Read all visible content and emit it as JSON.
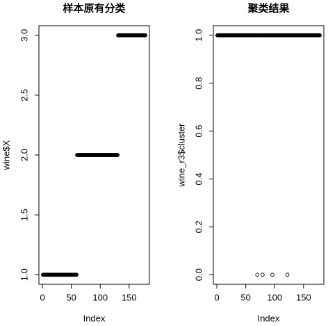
{
  "chart_data": [
    {
      "type": "scatter",
      "title": "样本原有分类",
      "x_label": "Index",
      "y_label": "wine$X",
      "marker_color": "#000000",
      "x": [
        1,
        2,
        3,
        4,
        5,
        6,
        7,
        8,
        9,
        10,
        11,
        12,
        13,
        14,
        15,
        16,
        17,
        18,
        19,
        20,
        21,
        22,
        23,
        24,
        25,
        26,
        27,
        28,
        29,
        30,
        31,
        32,
        33,
        34,
        35,
        36,
        37,
        38,
        39,
        40,
        41,
        42,
        43,
        44,
        45,
        46,
        47,
        48,
        49,
        50,
        51,
        52,
        53,
        54,
        55,
        56,
        57,
        58,
        59,
        60,
        61,
        62,
        63,
        64,
        65,
        66,
        67,
        68,
        69,
        70,
        71,
        72,
        73,
        74,
        75,
        76,
        77,
        78,
        79,
        80,
        81,
        82,
        83,
        84,
        85,
        86,
        87,
        88,
        89,
        90,
        91,
        92,
        93,
        94,
        95,
        96,
        97,
        98,
        99,
        100,
        101,
        102,
        103,
        104,
        105,
        106,
        107,
        108,
        109,
        110,
        111,
        112,
        113,
        114,
        115,
        116,
        117,
        118,
        119,
        120,
        121,
        122,
        123,
        124,
        125,
        126,
        127,
        128,
        129,
        130,
        131,
        132,
        133,
        134,
        135,
        136,
        137,
        138,
        139,
        140,
        141,
        142,
        143,
        144,
        145,
        146,
        147,
        148,
        149,
        150,
        151,
        152,
        153,
        154,
        155,
        156,
        157,
        158,
        159,
        160,
        161,
        162,
        163,
        164,
        165,
        166,
        167,
        168,
        169,
        170,
        171,
        172,
        173,
        174,
        175,
        176,
        177,
        178
      ],
      "values": [
        1,
        1,
        1,
        1,
        1,
        1,
        1,
        1,
        1,
        1,
        1,
        1,
        1,
        1,
        1,
        1,
        1,
        1,
        1,
        1,
        1,
        1,
        1,
        1,
        1,
        1,
        1,
        1,
        1,
        1,
        1,
        1,
        1,
        1,
        1,
        1,
        1,
        1,
        1,
        1,
        1,
        1,
        1,
        1,
        1,
        1,
        1,
        1,
        1,
        1,
        1,
        1,
        1,
        1,
        1,
        1,
        1,
        1,
        1,
        2,
        2,
        2,
        2,
        2,
        2,
        2,
        2,
        2,
        2,
        2,
        2,
        2,
        2,
        2,
        2,
        2,
        2,
        2,
        2,
        2,
        2,
        2,
        2,
        2,
        2,
        2,
        2,
        2,
        2,
        2,
        2,
        2,
        2,
        2,
        2,
        2,
        2,
        2,
        2,
        2,
        2,
        2,
        2,
        2,
        2,
        2,
        2,
        2,
        2,
        2,
        2,
        2,
        2,
        2,
        2,
        2,
        2,
        2,
        2,
        2,
        2,
        2,
        2,
        2,
        2,
        2,
        2,
        2,
        2,
        2,
        3,
        3,
        3,
        3,
        3,
        3,
        3,
        3,
        3,
        3,
        3,
        3,
        3,
        3,
        3,
        3,
        3,
        3,
        3,
        3,
        3,
        3,
        3,
        3,
        3,
        3,
        3,
        3,
        3,
        3,
        3,
        3,
        3,
        3,
        3,
        3,
        3,
        3,
        3,
        3,
        3,
        3,
        3,
        3,
        3,
        3,
        3,
        3
      ],
      "xlim": [
        -6.08,
        185.08
      ],
      "xticks": [
        0,
        50,
        100,
        150
      ],
      "ylim": [
        0.92,
        3.08
      ],
      "yticks": [
        {
          "value": 1,
          "label": "1.0"
        },
        {
          "value": 1.5,
          "label": "1.5"
        },
        {
          "value": 2,
          "label": "2.0"
        },
        {
          "value": 2.5,
          "label": "2.5"
        },
        {
          "value": 3,
          "label": "3.0"
        }
      ]
    },
    {
      "type": "scatter",
      "title": "聚类结果",
      "x_label": "Index",
      "y_label": "wine_r3$cluster",
      "marker_color": "#000000",
      "x": [
        1,
        2,
        3,
        4,
        5,
        6,
        7,
        8,
        9,
        10,
        11,
        12,
        13,
        14,
        15,
        16,
        17,
        18,
        19,
        20,
        21,
        22,
        23,
        24,
        25,
        26,
        27,
        28,
        29,
        30,
        31,
        32,
        33,
        34,
        35,
        36,
        37,
        38,
        39,
        40,
        41,
        42,
        43,
        44,
        45,
        46,
        47,
        48,
        49,
        50,
        51,
        52,
        53,
        54,
        55,
        56,
        57,
        58,
        59,
        60,
        61,
        62,
        63,
        64,
        65,
        66,
        67,
        68,
        69,
        70,
        71,
        72,
        73,
        74,
        75,
        76,
        77,
        78,
        79,
        80,
        81,
        82,
        83,
        84,
        85,
        86,
        87,
        88,
        89,
        90,
        91,
        92,
        93,
        94,
        95,
        96,
        97,
        98,
        99,
        100,
        101,
        102,
        103,
        104,
        105,
        106,
        107,
        108,
        109,
        110,
        111,
        112,
        113,
        114,
        115,
        116,
        117,
        118,
        119,
        120,
        121,
        122,
        123,
        124,
        125,
        126,
        127,
        128,
        129,
        130,
        131,
        132,
        133,
        134,
        135,
        136,
        137,
        138,
        139,
        140,
        141,
        142,
        143,
        144,
        145,
        146,
        147,
        148,
        149,
        150,
        151,
        152,
        153,
        154,
        155,
        156,
        157,
        158,
        159,
        160,
        161,
        162,
        163,
        164,
        165,
        166,
        167,
        168,
        169,
        170,
        171,
        172,
        173,
        174,
        175,
        176,
        177,
        178
      ],
      "values": [
        1,
        1,
        1,
        1,
        1,
        1,
        1,
        1,
        1,
        1,
        1,
        1,
        1,
        1,
        1,
        1,
        1,
        1,
        1,
        1,
        1,
        1,
        1,
        1,
        1,
        1,
        1,
        1,
        1,
        1,
        1,
        1,
        1,
        1,
        1,
        1,
        1,
        1,
        1,
        1,
        1,
        1,
        1,
        1,
        1,
        1,
        1,
        1,
        1,
        1,
        1,
        1,
        1,
        1,
        1,
        1,
        1,
        1,
        1,
        1,
        1,
        1,
        1,
        1,
        1,
        1,
        1,
        1,
        1,
        0,
        1,
        1,
        1,
        1,
        1,
        1,
        1,
        1,
        0,
        1,
        1,
        1,
        1,
        1,
        1,
        1,
        1,
        1,
        1,
        1,
        1,
        1,
        1,
        1,
        1,
        0,
        1,
        1,
        1,
        1,
        1,
        1,
        1,
        1,
        1,
        1,
        1,
        1,
        1,
        1,
        1,
        1,
        1,
        1,
        1,
        1,
        1,
        1,
        1,
        1,
        1,
        0,
        1,
        1,
        1,
        1,
        1,
        1,
        1,
        1,
        1,
        1,
        1,
        1,
        1,
        1,
        1,
        1,
        1,
        1,
        1,
        1,
        1,
        1,
        1,
        1,
        1,
        1,
        1,
        1,
        1,
        1,
        1,
        1,
        1,
        1,
        1,
        1,
        1,
        1,
        1,
        1,
        1,
        1,
        1,
        1,
        1,
        1,
        1,
        1,
        1,
        1,
        1,
        1,
        1,
        1,
        1,
        1
      ],
      "xlim": [
        -6.08,
        185.08
      ],
      "xticks": [
        0,
        50,
        100,
        150
      ],
      "ylim": [
        -0.04,
        1.04
      ],
      "yticks": [
        {
          "value": 0,
          "label": "0.0"
        },
        {
          "value": 0.2,
          "label": "0.2"
        },
        {
          "value": 0.4,
          "label": "0.4"
        },
        {
          "value": 0.6,
          "label": "0.6"
        },
        {
          "value": 0.8,
          "label": "0.8"
        },
        {
          "value": 1,
          "label": "1.0"
        }
      ]
    }
  ]
}
